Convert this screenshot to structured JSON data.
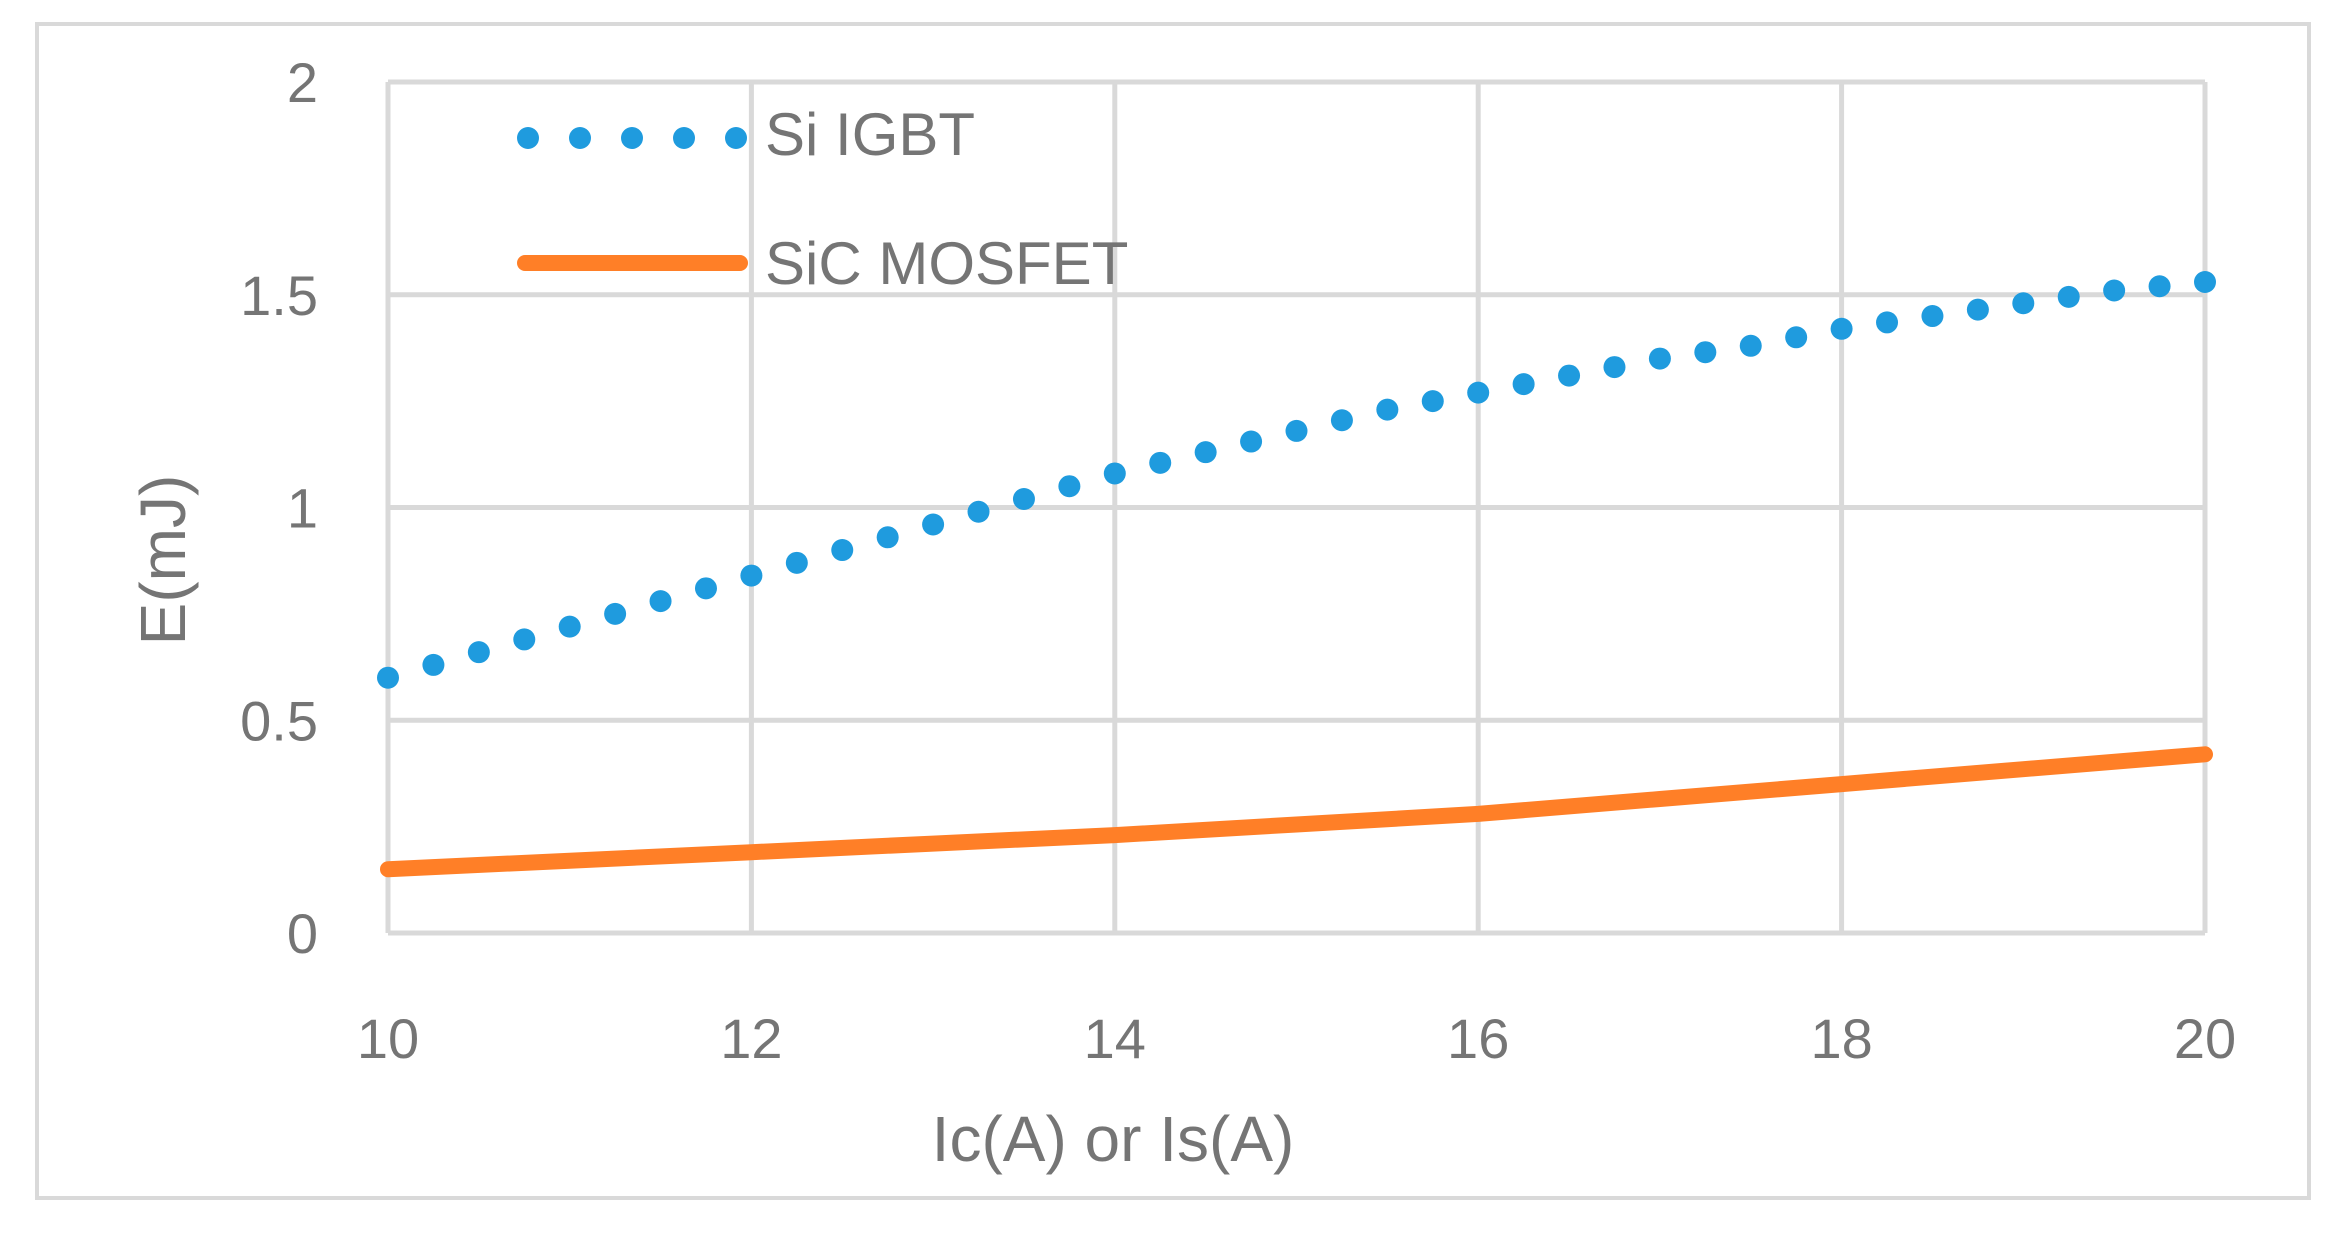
{
  "chart_data": {
    "type": "line",
    "title": "",
    "xlabel": "Ic(A) or Is(A)",
    "ylabel": "E(mJ)",
    "xlim": [
      10,
      20
    ],
    "ylim": [
      0,
      2
    ],
    "x_ticks": [
      "10",
      "12",
      "14",
      "16",
      "18",
      "20"
    ],
    "y_ticks": [
      "0",
      "0.5",
      "1",
      "1.5",
      "2"
    ],
    "grid": true,
    "legend_position": "top-left",
    "series": [
      {
        "name": "Si IGBT",
        "style": "dotted",
        "color": "#1f9bde",
        "x": [
          10,
          10.5,
          11,
          11.5,
          12,
          12.5,
          13,
          13.5,
          14,
          14.5,
          15,
          15.5,
          16,
          16.5,
          17,
          17.5,
          18,
          18.5,
          19,
          19.5,
          20
        ],
        "y": [
          0.6,
          0.66,
          0.72,
          0.78,
          0.84,
          0.9,
          0.96,
          1.02,
          1.08,
          1.13,
          1.18,
          1.23,
          1.27,
          1.31,
          1.35,
          1.38,
          1.42,
          1.45,
          1.48,
          1.51,
          1.53
        ]
      },
      {
        "name": "SiC MOSFET",
        "style": "solid",
        "color": "#ff7f27",
        "x": [
          10,
          11,
          12,
          13,
          14,
          15,
          16,
          17,
          18,
          19,
          20
        ],
        "y": [
          0.15,
          0.17,
          0.19,
          0.21,
          0.23,
          0.255,
          0.28,
          0.315,
          0.35,
          0.385,
          0.42
        ]
      }
    ]
  }
}
